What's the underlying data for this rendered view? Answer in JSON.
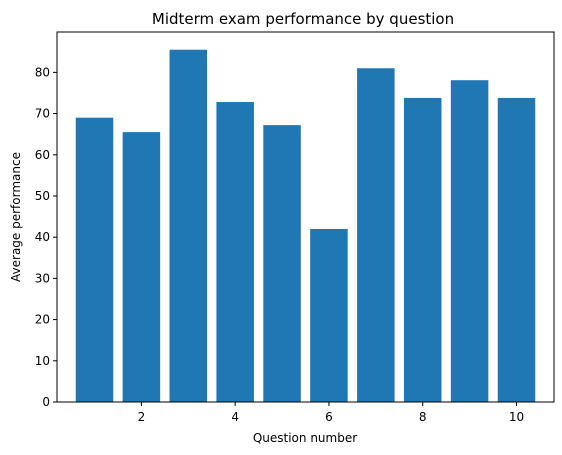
{
  "chart_data": {
    "type": "bar",
    "title": "Midterm exam performance by question",
    "xlabel": "Question number",
    "ylabel": "Average performance",
    "x": [
      1,
      2,
      3,
      4,
      5,
      6,
      7,
      8,
      9,
      10
    ],
    "values": [
      69,
      65.5,
      85.5,
      72.8,
      67.2,
      42,
      81,
      73.8,
      78.1,
      73.8
    ],
    "color": "#1f77b4",
    "xlim": [
      0.2,
      10.8
    ],
    "ylim": [
      0,
      89.8
    ],
    "xticks": [
      2,
      4,
      6,
      8,
      10
    ],
    "yticks": [
      0,
      10,
      20,
      30,
      40,
      50,
      60,
      70,
      80
    ],
    "grid": false
  }
}
